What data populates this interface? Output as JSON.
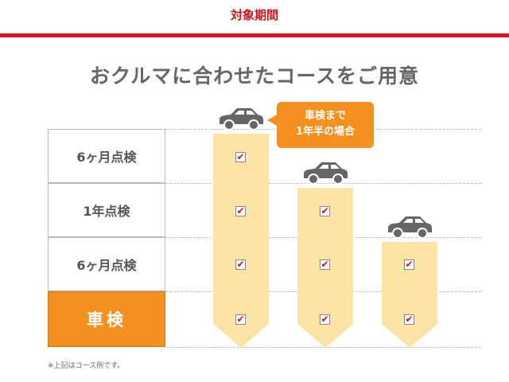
{
  "header": {
    "period_label": "対象期間"
  },
  "title": "おクルマに合わせたコースをご用意",
  "rows": [
    {
      "label": "6ヶ月点検"
    },
    {
      "label": "1年点検"
    },
    {
      "label": "6ヶ月点検"
    },
    {
      "label": "車検"
    }
  ],
  "callout": {
    "line1": "車検まで",
    "line2": "1年半の場合"
  },
  "courses": [
    {
      "checks": 4
    },
    {
      "checks": 3
    },
    {
      "checks": 2
    }
  ],
  "note": "※上記はコース例です。",
  "colors": {
    "red": "#c8171e",
    "orange": "#f39020",
    "bar": "#fbe3a6",
    "car": "#666666"
  }
}
